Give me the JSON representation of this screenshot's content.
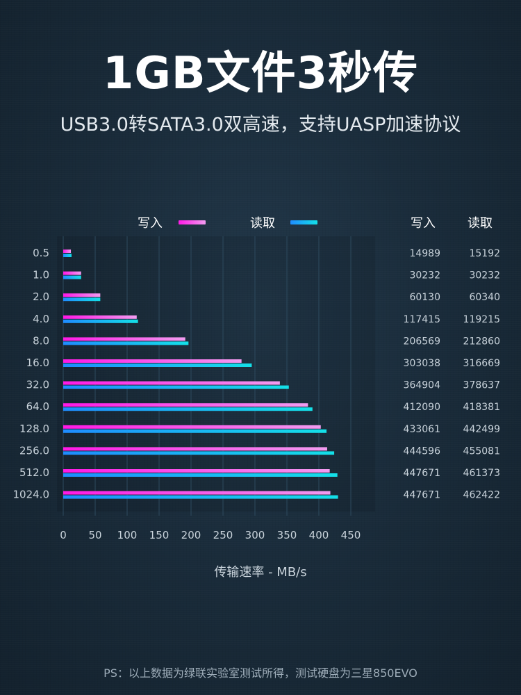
{
  "header": {
    "title": "1GB文件3秒传",
    "subtitle": "USB3.0转SATA3.0双高速，支持UASP加速协议"
  },
  "footnote": "PS：以上数据为绿联实验室测试所得，测试硬盘为三星850EVO",
  "colors": {
    "write_start": "#ff19e6",
    "write_end": "#f29cf0",
    "read_start": "#1f8cff",
    "read_end": "#14e0e8",
    "grid": "#2d4a5e",
    "label": "#c9d3db"
  },
  "chart_data": {
    "type": "bar",
    "orientation": "horizontal",
    "categories": [
      "0.5",
      "1.0",
      "2.0",
      "4.0",
      "8.0",
      "16.0",
      "32.0",
      "64.0",
      "128.0",
      "256.0",
      "512.0",
      "1024.0"
    ],
    "series": [
      {
        "name": "写入",
        "values": [
          12,
          28,
          58,
          115,
          191,
          279,
          339,
          383,
          403,
          413,
          417,
          418
        ]
      },
      {
        "name": "读取",
        "values": [
          13,
          28,
          58,
          117,
          196,
          295,
          353,
          390,
          412,
          424,
          429,
          430
        ]
      }
    ],
    "xlabel": "传输速率 - MB/s",
    "xlim": [
      0,
      450
    ],
    "xticks": [
      0,
      50,
      100,
      150,
      200,
      250,
      300,
      350,
      400,
      450
    ],
    "grid": true,
    "legend_position": "top",
    "table": {
      "headers": [
        "写入",
        "读取"
      ],
      "rows": [
        [
          "14989",
          "15192"
        ],
        [
          "30232",
          "30232"
        ],
        [
          "60130",
          "60340"
        ],
        [
          "117415",
          "119215"
        ],
        [
          "206569",
          "212860"
        ],
        [
          "303038",
          "316669"
        ],
        [
          "364904",
          "378637"
        ],
        [
          "412090",
          "418381"
        ],
        [
          "433061",
          "442499"
        ],
        [
          "444596",
          "455081"
        ],
        [
          "447671",
          "461373"
        ],
        [
          "447671",
          "462422"
        ]
      ]
    }
  }
}
